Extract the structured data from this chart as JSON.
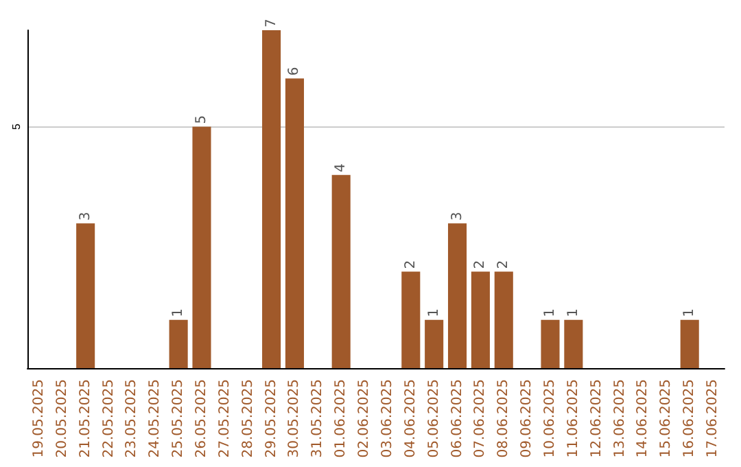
{
  "chart_data": {
    "type": "bar",
    "categories": [
      "19.05.2025",
      "20.05.2025",
      "21.05.2025",
      "22.05.2025",
      "23.05.2025",
      "24.05.2025",
      "25.05.2025",
      "26.05.2025",
      "27.05.2025",
      "28.05.2025",
      "29.05.2025",
      "30.05.2025",
      "31.05.2025",
      "01.06.2025",
      "02.06.2025",
      "03.06.2025",
      "04.06.2025",
      "05.06.2025",
      "06.06.2025",
      "07.06.2025",
      "08.06.2025",
      "09.06.2025",
      "10.06.2025",
      "11.06.2025",
      "12.06.2025",
      "13.06.2025",
      "14.06.2025",
      "15.06.2025",
      "16.06.2025",
      "17.06.2025"
    ],
    "values": [
      0,
      0,
      3,
      0,
      0,
      0,
      1,
      5,
      0,
      0,
      7,
      6,
      0,
      4,
      0,
      0,
      2,
      1,
      3,
      2,
      2,
      0,
      1,
      1,
      0,
      0,
      0,
      0,
      1,
      0
    ],
    "value_labels": [
      null,
      null,
      "3",
      null,
      null,
      null,
      "1",
      "5",
      null,
      null,
      "7",
      "6",
      null,
      "4",
      null,
      null,
      "2",
      "1",
      "3",
      "2",
      "2",
      null,
      "1",
      "1",
      null,
      null,
      null,
      null,
      "1",
      null
    ],
    "color": "#a0592a",
    "ylim": [
      0,
      7
    ],
    "yticks": [
      5
    ],
    "grid": "y"
  }
}
